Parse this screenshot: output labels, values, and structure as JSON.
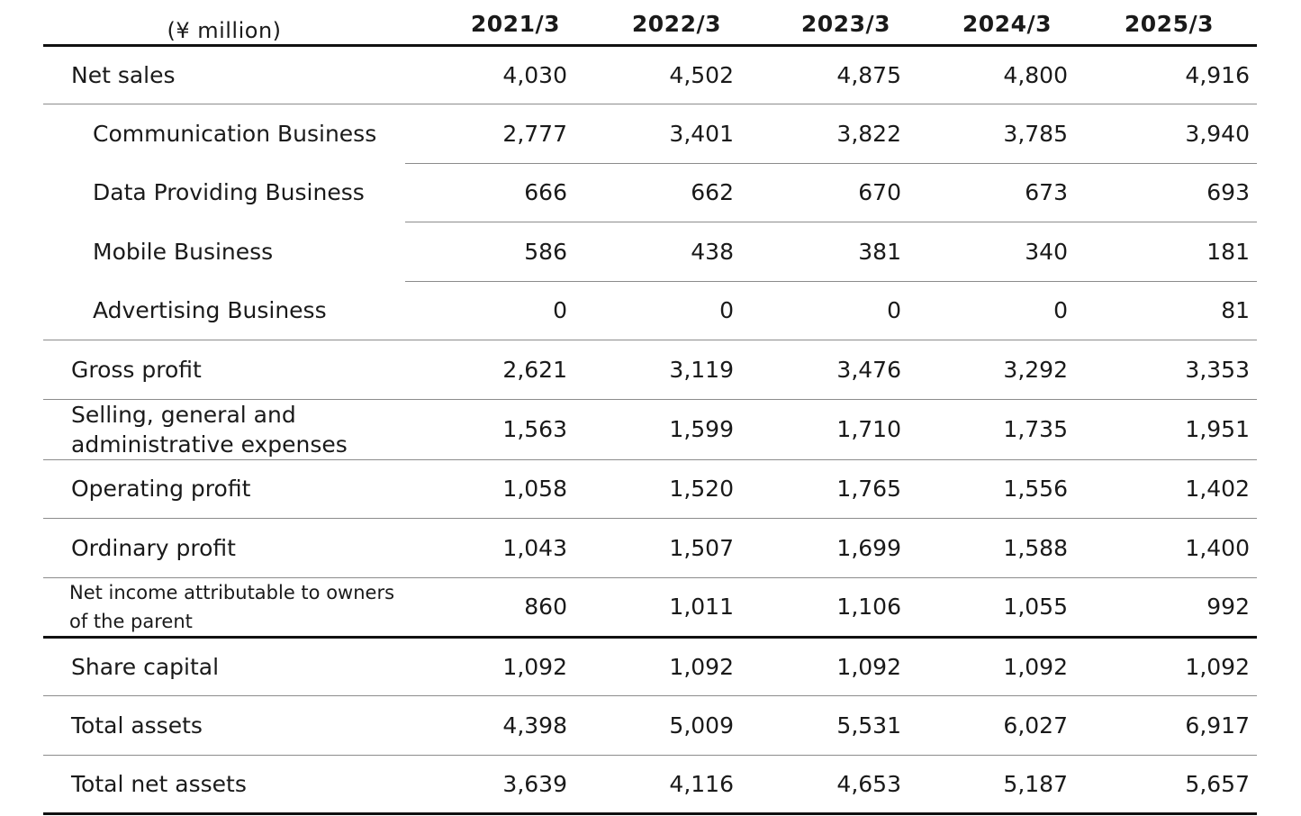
{
  "unit_label": "(¥ million)",
  "years": [
    "2021/3",
    "2022/3",
    "2023/3",
    "2024/3",
    "2025/3"
  ],
  "rows": [
    {
      "label": "Net sales",
      "values": [
        "4,030",
        "4,502",
        "4,875",
        "4,800",
        "4,916"
      ]
    },
    {
      "label": "Communication Business",
      "values": [
        "2,777",
        "3,401",
        "3,822",
        "3,785",
        "3,940"
      ]
    },
    {
      "label": "Data Providing Business",
      "values": [
        "666",
        "662",
        "670",
        "673",
        "693"
      ]
    },
    {
      "label": "Mobile Business",
      "values": [
        "586",
        "438",
        "381",
        "340",
        "181"
      ]
    },
    {
      "label": "Advertising Business",
      "values": [
        "0",
        "0",
        "0",
        "0",
        "81"
      ]
    },
    {
      "label": "Gross profit",
      "values": [
        "2,621",
        "3,119",
        "3,476",
        "3,292",
        "3,353"
      ]
    },
    {
      "label_line1": "Selling, general and",
      "label_line2": "administrative expenses",
      "values": [
        "1,563",
        "1,599",
        "1,710",
        "1,735",
        "1,951"
      ]
    },
    {
      "label": "Operating profit",
      "values": [
        "1,058",
        "1,520",
        "1,765",
        "1,556",
        "1,402"
      ]
    },
    {
      "label": "Ordinary profit",
      "values": [
        "1,043",
        "1,507",
        "1,699",
        "1,588",
        "1,400"
      ]
    },
    {
      "label_line1": "Net income attributable to owners",
      "label_line2": "of the parent",
      "values": [
        "860",
        "1,011",
        "1,106",
        "1,055",
        "992"
      ]
    },
    {
      "label": "Share capital",
      "values": [
        "1,092",
        "1,092",
        "1,092",
        "1,092",
        "1,092"
      ]
    },
    {
      "label": "Total assets",
      "values": [
        "4,398",
        "5,009",
        "5,531",
        "6,027",
        "6,917"
      ]
    },
    {
      "label": "Total net assets",
      "values": [
        "3,639",
        "4,116",
        "4,653",
        "5,187",
        "5,657"
      ]
    }
  ]
}
